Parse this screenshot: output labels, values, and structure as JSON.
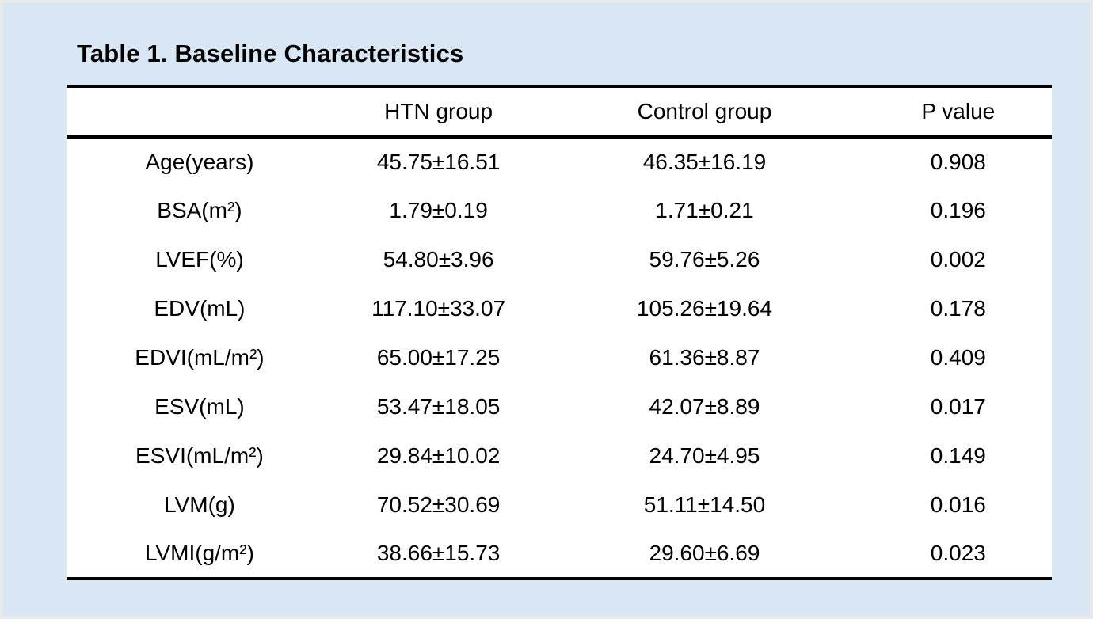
{
  "page": {
    "background_color": "#d9e6f3",
    "panel_color": "#ffffff",
    "rule_color": "#000000",
    "frame_border_color": "#e9e9e9"
  },
  "table": {
    "title": "Table 1. Baseline Characteristics",
    "columns": {
      "label": "",
      "htn": "HTN group",
      "control": "Control group",
      "p": "P value"
    },
    "rows": [
      {
        "label": "Age(years)",
        "htn": "45.75±16.51",
        "control": "46.35±16.19",
        "p": "0.908"
      },
      {
        "label": "BSA(m²)",
        "htn": "1.79±0.19",
        "control": "1.71±0.21",
        "p": "0.196"
      },
      {
        "label": "LVEF(%)",
        "htn": "54.80±3.96",
        "control": "59.76±5.26",
        "p": "0.002"
      },
      {
        "label": "EDV(mL)",
        "htn": "117.10±33.07",
        "control": "105.26±19.64",
        "p": "0.178"
      },
      {
        "label": "EDVI(mL/m²)",
        "htn": "65.00±17.25",
        "control": "61.36±8.87",
        "p": "0.409"
      },
      {
        "label": "ESV(mL)",
        "htn": "53.47±18.05",
        "control": "42.07±8.89",
        "p": "0.017"
      },
      {
        "label": "ESVI(mL/m²)",
        "htn": "29.84±10.02",
        "control": "24.70±4.95",
        "p": "0.149"
      },
      {
        "label": "LVM(g)",
        "htn": "70.52±30.69",
        "control": "51.11±14.50",
        "p": "0.016"
      },
      {
        "label": "LVMI(g/m²)",
        "htn": "38.66±15.73",
        "control": "29.60±6.69",
        "p": "0.023"
      }
    ]
  }
}
